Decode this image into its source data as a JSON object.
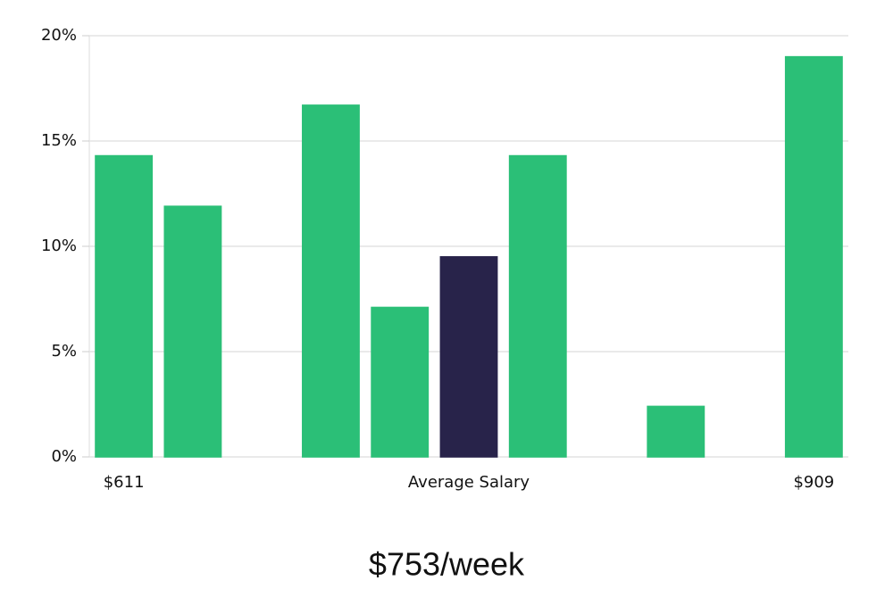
{
  "chart_data": {
    "type": "bar",
    "categories": [
      "$611",
      null,
      null,
      null,
      null,
      null,
      null,
      null,
      null,
      null,
      "$909"
    ],
    "values": [
      14.3,
      11.9,
      0,
      16.7,
      7.1,
      9.5,
      14.3,
      0,
      2.4,
      0,
      19.0
    ],
    "colors": [
      "#2bbf77",
      "#2bbf77",
      "#2bbf77",
      "#2bbf77",
      "#2bbf77",
      "#28234a",
      "#2bbf77",
      "#2bbf77",
      "#2bbf77",
      "#2bbf77",
      "#2bbf77"
    ],
    "x_label": "Average Salary",
    "annotation": "$753/week",
    "ylim": [
      0,
      20
    ],
    "yticks": [
      {
        "value": 0,
        "label": "0%"
      },
      {
        "value": 5,
        "label": "5%"
      },
      {
        "value": 10,
        "label": "10%"
      },
      {
        "value": 15,
        "label": "15%"
      },
      {
        "value": 20,
        "label": "20%"
      }
    ],
    "grid": true
  }
}
